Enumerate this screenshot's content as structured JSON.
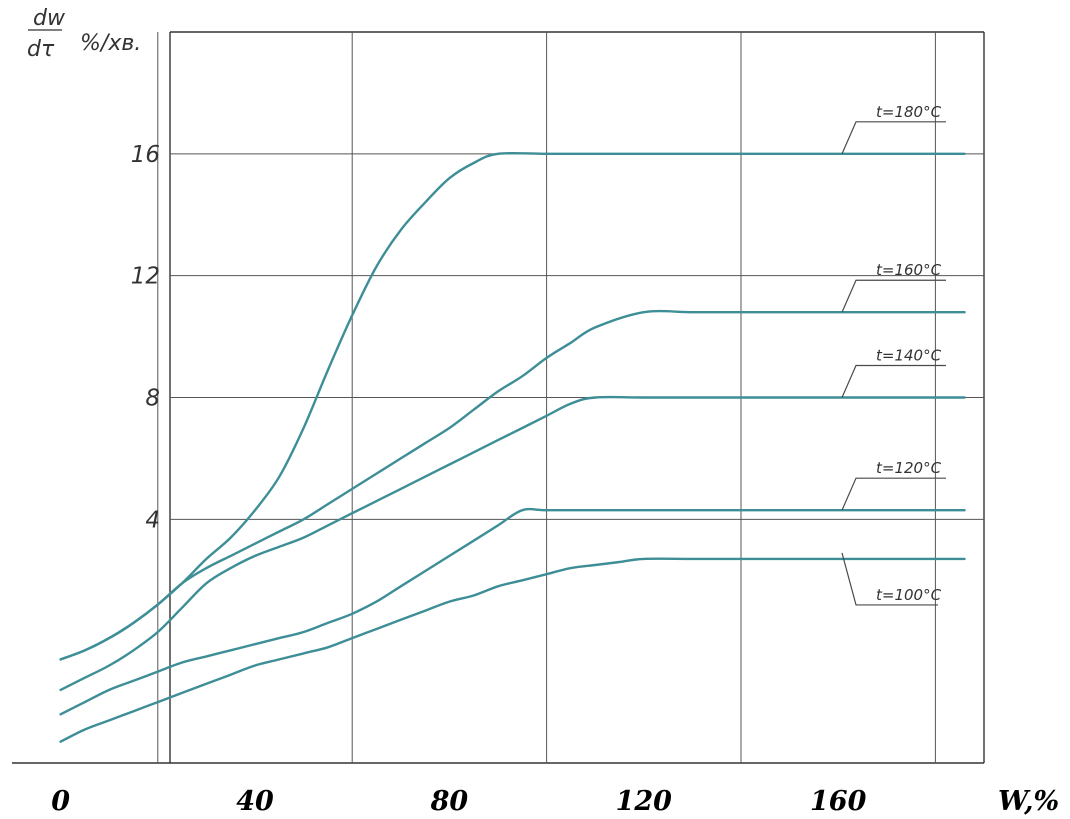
{
  "chart_data": {
    "type": "line",
    "xlabel": "W,%",
    "ylabel": {
      "numerator": "dw",
      "denominator": "dτ",
      "unit": "%/хв."
    },
    "xlim": [
      -10,
      190
    ],
    "ylim": [
      -4,
      20
    ],
    "x_ticks": [
      {
        "value": 0,
        "label": "0"
      },
      {
        "value": 40,
        "label": "40"
      },
      {
        "value": 80,
        "label": "80"
      },
      {
        "value": 120,
        "label": "120"
      },
      {
        "value": 160,
        "label": "160"
      }
    ],
    "y_ticks": [
      {
        "value": 4,
        "label": "4"
      },
      {
        "value": 8,
        "label": "8"
      },
      {
        "value": 12,
        "label": "12"
      },
      {
        "value": 16,
        "label": "16"
      }
    ],
    "x_grid": [
      20,
      60,
      100,
      140,
      180
    ],
    "y_grid": [
      4,
      8,
      12,
      16
    ],
    "grid": true,
    "series_color": "#3d8e96",
    "series": [
      {
        "name": "t=180°С",
        "x": [
          0,
          5,
          10,
          15,
          20,
          25,
          30,
          35,
          40,
          45,
          50,
          55,
          60,
          65,
          70,
          75,
          80,
          85,
          90,
          100,
          110,
          120,
          130,
          140,
          150,
          160,
          170,
          180,
          186
        ],
        "y": [
          -0.6,
          -0.3,
          0.1,
          0.6,
          1.2,
          1.9,
          2.7,
          3.4,
          4.3,
          5.4,
          7.0,
          8.9,
          10.7,
          12.3,
          13.5,
          14.4,
          15.2,
          15.7,
          16.0,
          16.0,
          16.0,
          16.0,
          16.0,
          16.0,
          16.0,
          16.0,
          16.0,
          16.0,
          16.0
        ]
      },
      {
        "name": "t=160°С",
        "x": [
          0,
          5,
          10,
          15,
          20,
          25,
          30,
          35,
          40,
          45,
          50,
          55,
          60,
          65,
          70,
          75,
          80,
          85,
          90,
          95,
          100,
          105,
          110,
          120,
          130,
          140,
          150,
          160,
          170,
          180,
          186
        ],
        "y": [
          -0.6,
          -0.3,
          0.1,
          0.6,
          1.2,
          1.9,
          2.4,
          2.8,
          3.2,
          3.6,
          4.0,
          4.5,
          5.0,
          5.5,
          6.0,
          6.5,
          7.0,
          7.6,
          8.2,
          8.7,
          9.3,
          9.8,
          10.3,
          10.8,
          10.8,
          10.8,
          10.8,
          10.8,
          10.8,
          10.8,
          10.8
        ]
      },
      {
        "name": "t=140°С",
        "x": [
          0,
          5,
          10,
          15,
          20,
          25,
          30,
          35,
          40,
          45,
          50,
          55,
          60,
          65,
          70,
          75,
          80,
          85,
          90,
          95,
          100,
          105,
          110,
          120,
          130,
          140,
          150,
          160,
          170,
          180,
          186
        ],
        "y": [
          -1.6,
          -1.2,
          -0.8,
          -0.3,
          0.3,
          1.1,
          1.9,
          2.4,
          2.8,
          3.1,
          3.4,
          3.8,
          4.2,
          4.6,
          5.0,
          5.4,
          5.8,
          6.2,
          6.6,
          7.0,
          7.4,
          7.8,
          8.0,
          8.0,
          8.0,
          8.0,
          8.0,
          8.0,
          8.0,
          8.0,
          8.0
        ]
      },
      {
        "name": "t=120°С",
        "x": [
          0,
          5,
          10,
          15,
          20,
          25,
          30,
          35,
          40,
          45,
          50,
          55,
          60,
          65,
          70,
          75,
          80,
          85,
          90,
          95,
          100,
          110,
          120,
          130,
          140,
          150,
          160,
          170,
          180,
          186
        ],
        "y": [
          -2.4,
          -2.0,
          -1.6,
          -1.3,
          -1.0,
          -0.7,
          -0.5,
          -0.3,
          -0.1,
          0.1,
          0.3,
          0.6,
          0.9,
          1.3,
          1.8,
          2.3,
          2.8,
          3.3,
          3.8,
          4.3,
          4.3,
          4.3,
          4.3,
          4.3,
          4.3,
          4.3,
          4.3,
          4.3,
          4.3,
          4.3
        ]
      },
      {
        "name": "t=100°С",
        "x": [
          0,
          5,
          10,
          15,
          20,
          25,
          30,
          35,
          40,
          45,
          50,
          55,
          60,
          65,
          70,
          75,
          80,
          85,
          90,
          95,
          100,
          105,
          110,
          115,
          120,
          130,
          140,
          150,
          160,
          170,
          180,
          186
        ],
        "y": [
          -3.3,
          -2.9,
          -2.6,
          -2.3,
          -2.0,
          -1.7,
          -1.4,
          -1.1,
          -0.8,
          -0.6,
          -0.4,
          -0.2,
          0.1,
          0.4,
          0.7,
          1.0,
          1.3,
          1.5,
          1.8,
          2.0,
          2.2,
          2.4,
          2.5,
          2.6,
          2.7,
          2.7,
          2.7,
          2.7,
          2.7,
          2.7,
          2.7,
          2.7
        ]
      }
    ]
  }
}
